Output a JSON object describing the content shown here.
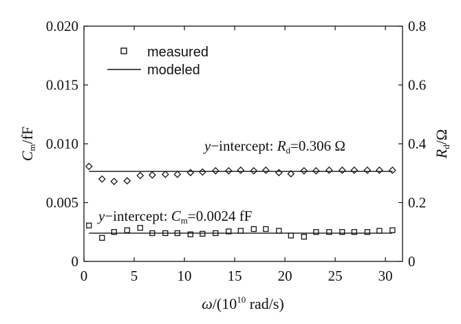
{
  "chart_data": {
    "type": "scatter",
    "x_ticks": [
      "0",
      "5",
      "10",
      "15",
      "20",
      "25",
      "30"
    ],
    "y_left_ticks": [
      "0",
      "0.005",
      "0.010",
      "0.015",
      "0.020"
    ],
    "y_right_ticks": [
      "0",
      "0.2",
      "0.4",
      "0.6",
      "0.8"
    ],
    "xlim": [
      0,
      31.7
    ],
    "ylim_left": [
      0,
      0.02
    ],
    "ylim_right": [
      0,
      0.8
    ],
    "x_label": {
      "omega": "ω",
      "pre": "/(10",
      "sup": "10",
      "post": " rad/s)"
    },
    "y_left_label": {
      "sym": "C",
      "sub": "m",
      "unit": "/fF"
    },
    "y_right_label": {
      "sym": "R",
      "sub": "d",
      "unit": "/Ω"
    },
    "legend": {
      "position": "top-left",
      "measured": "measured",
      "modeled": "modeled"
    },
    "annotations": {
      "rd": {
        "prefix": "y",
        "mid": "−intercept: ",
        "sym": "R",
        "sub": "d",
        "value": "=0.306 Ω"
      },
      "cm": {
        "prefix": "y",
        "mid": "−intercept: ",
        "sym": "C",
        "sub": "m",
        "value": "=0.0024 fF"
      }
    },
    "series": [
      {
        "marker": "square",
        "axis": "left",
        "x": [
          0.5,
          1.8,
          3.0,
          4.3,
          5.6,
          6.8,
          8.1,
          9.3,
          10.6,
          11.8,
          13.1,
          14.4,
          15.6,
          16.9,
          18.1,
          19.4,
          20.6,
          21.9,
          23.1,
          24.4,
          25.7,
          26.9,
          28.2,
          29.4,
          30.7
        ],
        "y": [
          0.00305,
          0.002,
          0.0025,
          0.00265,
          0.00285,
          0.0024,
          0.0024,
          0.0024,
          0.0023,
          0.00235,
          0.0024,
          0.00255,
          0.0026,
          0.00275,
          0.00275,
          0.0026,
          0.0022,
          0.0021,
          0.0025,
          0.0025,
          0.0025,
          0.0025,
          0.0025,
          0.0026,
          0.00265
        ]
      },
      {
        "marker": "diamond",
        "axis": "right",
        "x": [
          0.5,
          1.8,
          3.0,
          4.3,
          5.6,
          6.8,
          8.1,
          9.3,
          10.6,
          11.8,
          13.1,
          14.4,
          15.6,
          16.9,
          18.1,
          19.4,
          20.6,
          21.9,
          23.1,
          24.4,
          25.7,
          26.9,
          28.2,
          29.4,
          30.7
        ],
        "y": [
          0.323,
          0.28,
          0.272,
          0.274,
          0.292,
          0.294,
          0.296,
          0.296,
          0.302,
          0.304,
          0.308,
          0.308,
          0.31,
          0.308,
          0.31,
          0.302,
          0.298,
          0.308,
          0.308,
          0.31,
          0.31,
          0.31,
          0.31,
          0.31,
          0.31
        ]
      }
    ],
    "fit_lines": [
      {
        "axis": "left",
        "value": 0.0024
      },
      {
        "axis": "right",
        "value": 0.306
      }
    ]
  }
}
